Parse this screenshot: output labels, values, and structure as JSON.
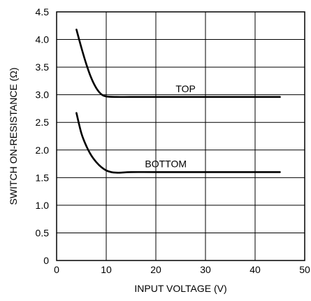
{
  "chart_data": {
    "type": "line",
    "title": "",
    "xlabel": "INPUT VOLTAGE (V)",
    "ylabel": "SWITCH ON-RESISTANCE (Ω)",
    "xlim": [
      0,
      50
    ],
    "ylim": [
      0,
      4.5
    ],
    "grid": true,
    "x_ticks": [
      0,
      10,
      20,
      30,
      40,
      50
    ],
    "x_tick_labels": [
      "0",
      "10",
      "20",
      "30",
      "40",
      "50"
    ],
    "y_ticks": [
      0,
      0.5,
      1.0,
      1.5,
      2.0,
      2.5,
      3.0,
      3.5,
      4.0,
      4.5
    ],
    "y_tick_labels": [
      "0",
      "0.5",
      "1.0",
      "1.5",
      "2.0",
      "2.5",
      "3.0",
      "3.5",
      "4.0",
      "4.5"
    ],
    "series": [
      {
        "name": "TOP",
        "x": [
          4,
          5,
          6,
          7,
          8,
          9,
          10,
          12,
          15,
          20,
          30,
          40,
          45
        ],
        "y": [
          4.18,
          3.85,
          3.55,
          3.3,
          3.12,
          3.01,
          2.97,
          2.96,
          2.96,
          2.96,
          2.96,
          2.96,
          2.96
        ]
      },
      {
        "name": "BOTTOM",
        "x": [
          4,
          5,
          6,
          7,
          8,
          9,
          10,
          11,
          12,
          13,
          15,
          20,
          30,
          40,
          45
        ],
        "y": [
          2.67,
          2.3,
          2.07,
          1.9,
          1.78,
          1.69,
          1.63,
          1.6,
          1.59,
          1.59,
          1.6,
          1.6,
          1.6,
          1.6,
          1.6
        ]
      }
    ]
  }
}
